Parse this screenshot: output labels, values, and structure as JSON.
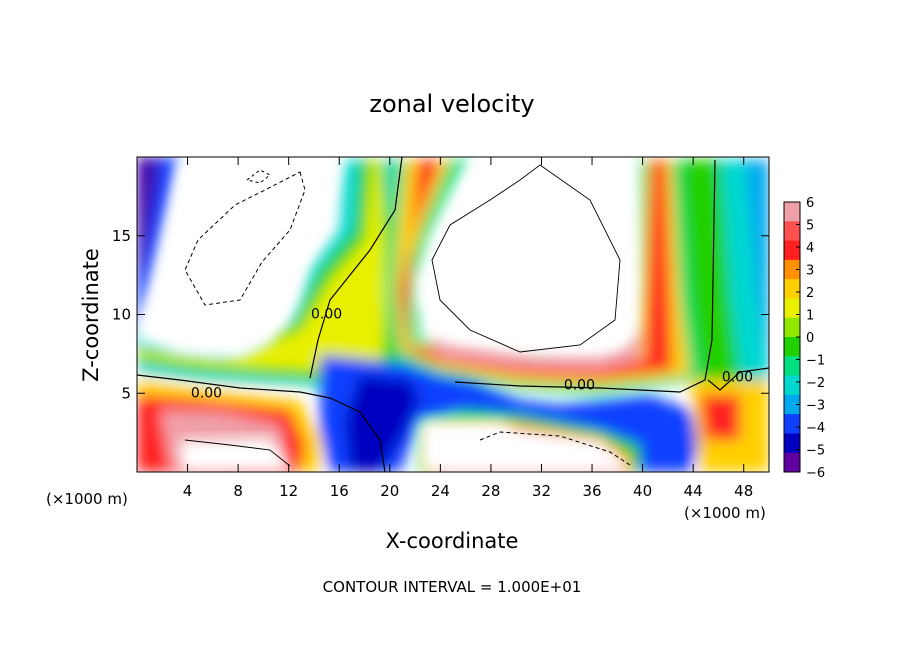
{
  "chart_data": {
    "type": "heatmap",
    "title": "zonal velocity",
    "xlabel": "X-coordinate",
    "ylabel": "Z-coordinate",
    "x_unit_label": "(×1000 m)",
    "z_unit_label": "(×1000 m)",
    "xlim": [
      0,
      50
    ],
    "ylim": [
      0,
      20
    ],
    "x_ticks": [
      4,
      8,
      12,
      16,
      20,
      24,
      28,
      32,
      36,
      40,
      44,
      48
    ],
    "y_ticks": [
      5,
      10,
      15
    ],
    "colorbar": {
      "ticks": [
        6,
        5,
        4,
        3,
        2,
        1,
        0,
        -1,
        -2,
        -3,
        -4,
        -5,
        -6
      ],
      "tick_labels": [
        "6",
        "5",
        "4",
        "3",
        "2",
        "1",
        "0",
        "−1",
        "−2",
        "−3",
        "−4",
        "−5",
        "−6"
      ],
      "colors": [
        "#f0a0a8",
        "#ff5050",
        "#ff2020",
        "#ff9000",
        "#ffd000",
        "#e8f000",
        "#90e800",
        "#20d000",
        "#00e080",
        "#00d8d0",
        "#00a8f0",
        "#1040ff",
        "#0000c0",
        "#6000a0"
      ]
    },
    "contour_labels": [
      {
        "text": "0.00",
        "x": 15,
        "z": 10
      },
      {
        "text": "0.00",
        "x": 5.5,
        "z": 5
      },
      {
        "text": "0.00",
        "x": 35,
        "z": 5.5
      },
      {
        "text": "0.00",
        "x": 47.5,
        "z": 6
      }
    ],
    "footer": "CONTOUR INTERVAL = 1.000E+01"
  }
}
